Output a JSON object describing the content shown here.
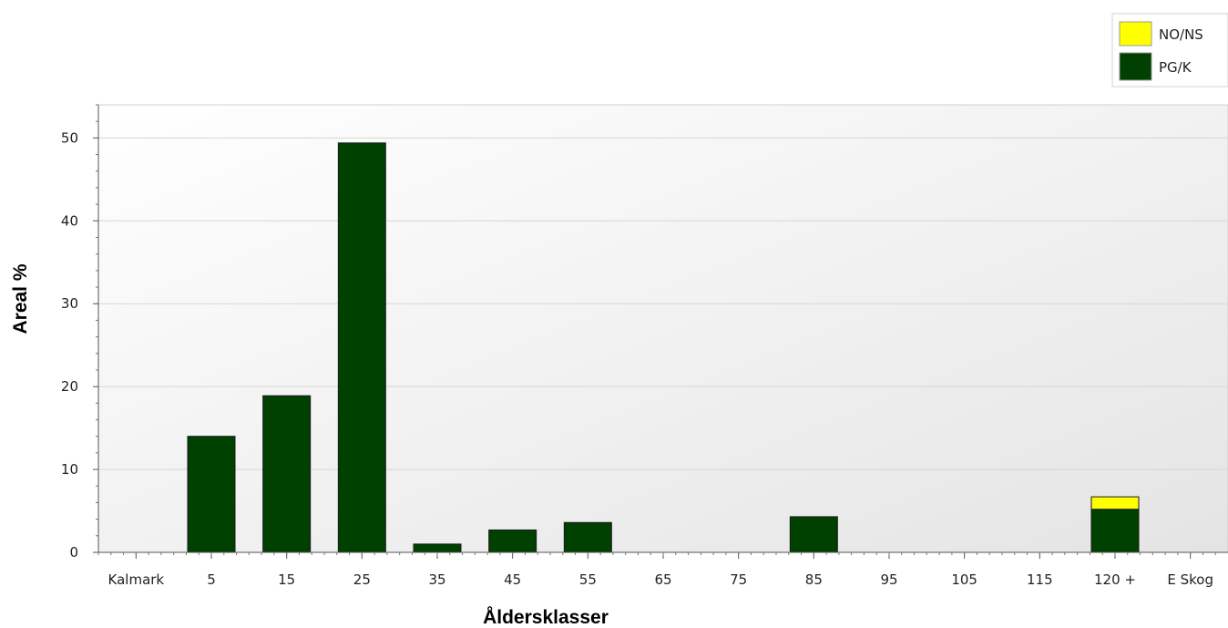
{
  "chart_data": {
    "type": "bar",
    "stacked": true,
    "categories": [
      "Kalmark",
      "5",
      "15",
      "25",
      "35",
      "45",
      "55",
      "65",
      "75",
      "85",
      "95",
      "105",
      "115",
      "120 +",
      "E Skog"
    ],
    "series": [
      {
        "name": "PG/K",
        "color": "#004000",
        "values": [
          0,
          14.0,
          18.9,
          49.4,
          1.0,
          2.7,
          3.6,
          0,
          0,
          4.3,
          0,
          0,
          0,
          5.2,
          0
        ]
      },
      {
        "name": "NO/NS",
        "color": "#ffff00",
        "values": [
          0,
          0,
          0,
          0,
          0,
          0,
          0,
          0,
          0,
          0,
          0,
          0,
          0,
          1.5,
          0
        ]
      }
    ],
    "xlabel": "Åldersklasser",
    "ylabel": "Areal %",
    "ylim": [
      0,
      54
    ],
    "yticks": [
      0,
      10,
      20,
      30,
      40,
      50
    ],
    "grid": true,
    "legend_position": "top-right"
  }
}
